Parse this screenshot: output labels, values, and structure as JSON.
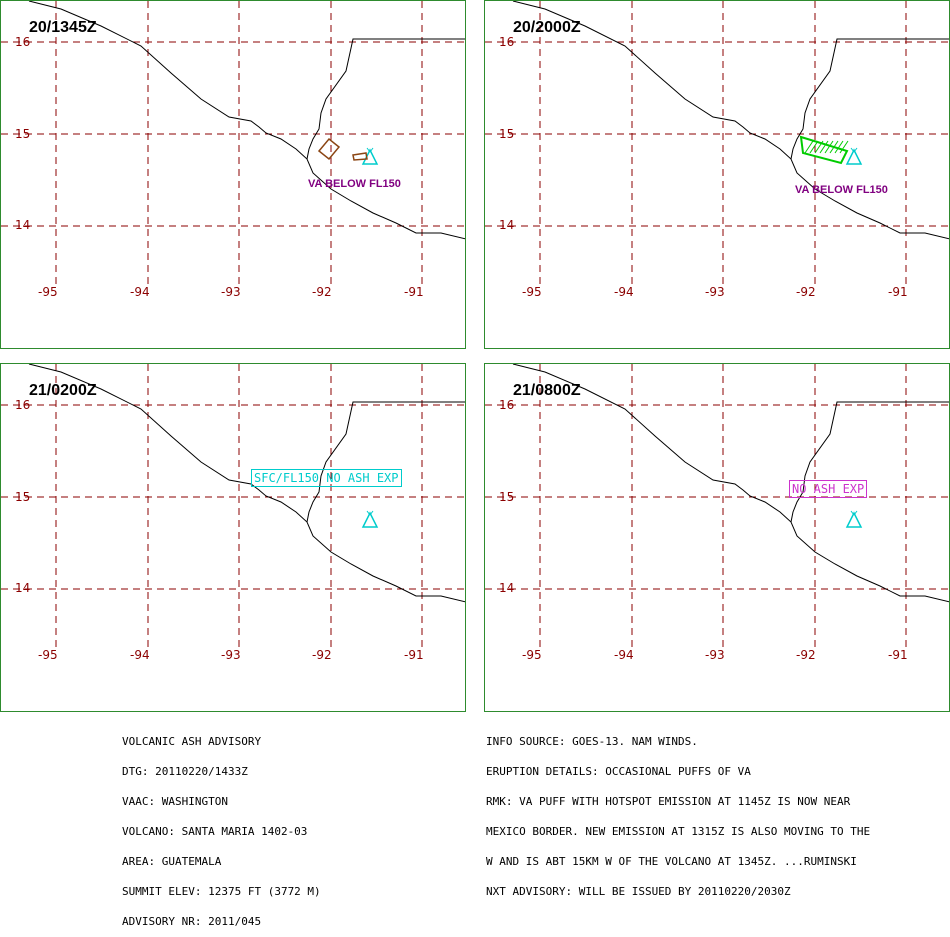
{
  "panels": [
    {
      "time": "20/1345Z",
      "lat_labels": [
        "16",
        "15",
        "14"
      ],
      "lon_labels": [
        "-95",
        "-94",
        "-93",
        "-92",
        "-91"
      ],
      "annotation": "VA BELOW FL150",
      "annotation_color": "#800080",
      "ash_color": "#8b4513"
    },
    {
      "time": "20/2000Z",
      "lat_labels": [
        "16",
        "15",
        "14"
      ],
      "lon_labels": [
        "-95",
        "-94",
        "-93",
        "-92",
        "-91"
      ],
      "annotation": "VA BELOW FL150",
      "annotation_color": "#800080",
      "ash_color": "#00cc00"
    },
    {
      "time": "21/0200Z",
      "lat_labels": [
        "16",
        "15",
        "14"
      ],
      "lon_labels": [
        "-95",
        "-94",
        "-93",
        "-92",
        "-91"
      ],
      "annotation": "SFC/FL150 NO ASH EXP",
      "annotation_color": "#00cccc"
    },
    {
      "time": "21/0800Z",
      "lat_labels": [
        "16",
        "15",
        "14"
      ],
      "lon_labels": [
        "-95",
        "-94",
        "-93",
        "-92",
        "-91"
      ],
      "annotation": "NO ASH EXP",
      "annotation_color": "#cc33cc"
    }
  ],
  "colors": {
    "grid": "#8b0000",
    "coast": "#000000",
    "volcano": "#00cccc",
    "panel_border": "#2e8b2e"
  },
  "volcano_icon": "volcano-triangle-icon",
  "advisory_left": [
    "VOLCANIC ASH ADVISORY",
    "DTG: 20110220/1433Z",
    "VAAC: WASHINGTON",
    "VOLCANO: SANTA MARIA 1402-03",
    "AREA: GUATEMALA",
    "SUMMIT ELEV: 12375 FT (3772 M)",
    "ADVISORY NR: 2011/045"
  ],
  "advisory_right": [
    "INFO SOURCE: GOES-13. NAM WINDS.",
    "ERUPTION DETAILS: OCCASIONAL PUFFS OF VA",
    "RMK: VA PUFF WITH HOTSPOT EMISSION AT 1145Z IS NOW NEAR",
    "MEXICO BORDER. NEW EMISSION AT 1315Z IS ALSO MOVING TO THE",
    "W AND IS ABT 15KM W OF THE VOLCANO AT 1345Z. ...RUMINSKI",
    "NXT ADVISORY: WILL BE ISSUED BY 20110220/2030Z"
  ]
}
